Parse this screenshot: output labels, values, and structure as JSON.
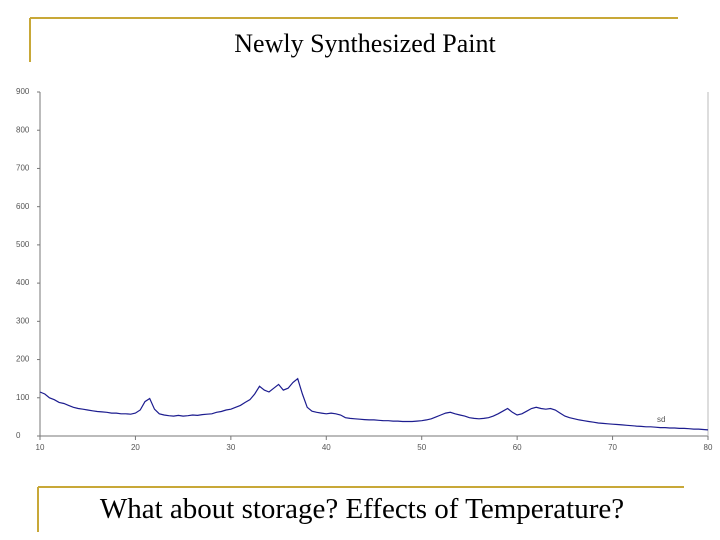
{
  "title": "Newly Synthesized Paint",
  "caption": "What about storage? Effects of Temperature?",
  "chart_data": {
    "type": "line",
    "annotation": "sd",
    "x": [
      10,
      10.5,
      11,
      11.5,
      12,
      12.5,
      13,
      13.5,
      14,
      14.5,
      15,
      15.5,
      16,
      16.5,
      17,
      17.5,
      18,
      18.5,
      19,
      19.5,
      20,
      20.5,
      21,
      21.5,
      22,
      22.5,
      23,
      23.5,
      24,
      24.5,
      25,
      25.5,
      26,
      26.5,
      27,
      27.5,
      28,
      28.5,
      29,
      29.5,
      30,
      30.5,
      31,
      31.5,
      32,
      32.5,
      33,
      33.5,
      34,
      34.5,
      35,
      35.5,
      36,
      36.5,
      37,
      37.5,
      38,
      38.5,
      39,
      39.5,
      40,
      40.5,
      41,
      41.5,
      42,
      42.5,
      43,
      43.5,
      44,
      44.5,
      45,
      45.5,
      46,
      46.5,
      47,
      47.5,
      48,
      48.5,
      49,
      49.5,
      50,
      50.5,
      51,
      51.5,
      52,
      52.5,
      53,
      53.5,
      54,
      54.5,
      55,
      55.5,
      56,
      56.5,
      57,
      57.5,
      58,
      58.5,
      59,
      59.5,
      60,
      60.5,
      61,
      61.5,
      62,
      62.5,
      63,
      63.5,
      64,
      64.5,
      65,
      65.5,
      66,
      66.5,
      67,
      67.5,
      68,
      68.5,
      69,
      69.5,
      70,
      70.5,
      71,
      71.5,
      72,
      72.5,
      73,
      73.5,
      74,
      74.5,
      75,
      75.5,
      76,
      76.5,
      77,
      77.5,
      78,
      78.5,
      79,
      79.5,
      80
    ],
    "series": [
      {
        "color": "#1c1c8f",
        "values": [
          115,
          110,
          100,
          95,
          88,
          85,
          80,
          75,
          72,
          70,
          68,
          66,
          64,
          63,
          62,
          60,
          60,
          58,
          58,
          57,
          60,
          68,
          90,
          98,
          70,
          58,
          55,
          53,
          52,
          54,
          52,
          53,
          55,
          54,
          56,
          57,
          58,
          62,
          64,
          68,
          70,
          75,
          80,
          88,
          95,
          110,
          130,
          120,
          115,
          125,
          135,
          120,
          125,
          140,
          150,
          110,
          75,
          65,
          62,
          60,
          58,
          60,
          58,
          55,
          48,
          46,
          45,
          44,
          43,
          42,
          42,
          41,
          40,
          40,
          39,
          39,
          38,
          38,
          38,
          39,
          40,
          42,
          45,
          50,
          55,
          60,
          62,
          58,
          55,
          52,
          48,
          46,
          45,
          46,
          48,
          52,
          58,
          65,
          72,
          62,
          55,
          58,
          65,
          72,
          75,
          72,
          70,
          72,
          68,
          60,
          52,
          48,
          45,
          42,
          40,
          38,
          36,
          34,
          33,
          32,
          31,
          30,
          29,
          28,
          27,
          26,
          25,
          24,
          24,
          23,
          22,
          22,
          21,
          21,
          20,
          20,
          19,
          18,
          18,
          17,
          16
        ]
      }
    ],
    "xlim": [
      10,
      80
    ],
    "xticks": [
      10,
      20,
      30,
      40,
      50,
      60,
      70,
      80
    ],
    "ylim": [
      0,
      900
    ],
    "yticks": [
      0,
      100,
      200,
      300,
      400,
      500,
      600,
      700,
      800,
      900
    ]
  }
}
